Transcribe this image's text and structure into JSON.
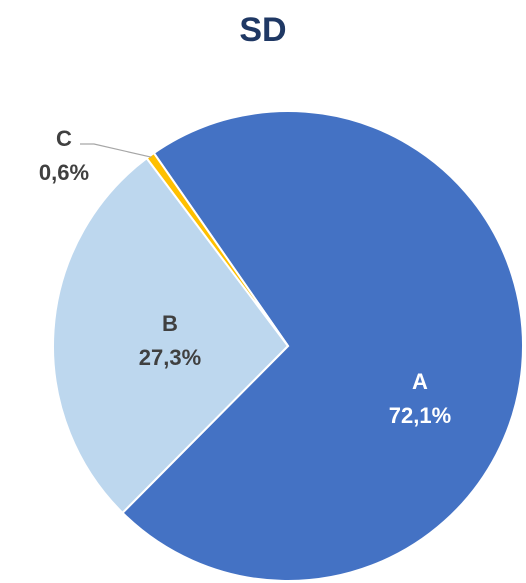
{
  "chart_data": {
    "type": "pie",
    "title": "SD",
    "categories": [
      "A",
      "B",
      "C"
    ],
    "values": [
      72.1,
      27.3,
      0.6
    ],
    "value_labels": [
      "72,1%",
      "27,3%",
      "0,6%"
    ],
    "colors": [
      "#4472c4",
      "#bdd7ee",
      "#ffc000"
    ]
  }
}
